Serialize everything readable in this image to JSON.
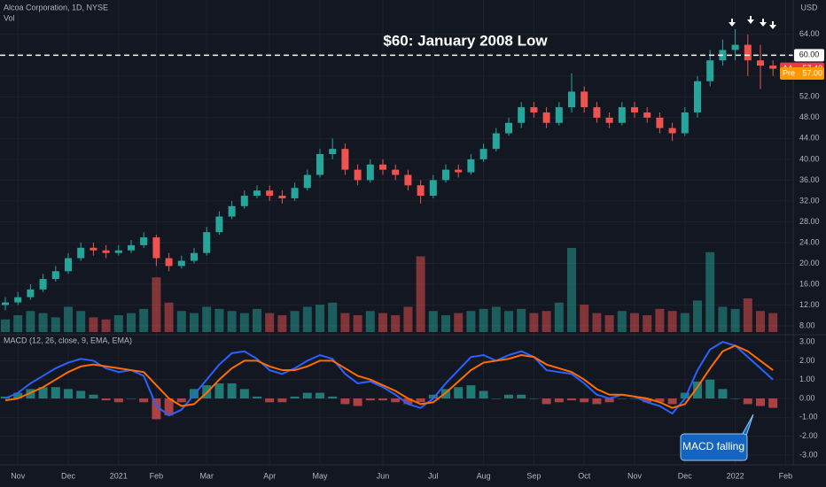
{
  "chart_data": [
    {
      "type": "candlestick",
      "title": "Alcoa Corporation, 1D, NYSE",
      "volume_label": "Vol",
      "currency": "USD",
      "categories": [
        null,
        "Nov",
        null,
        null,
        null,
        "Dec",
        null,
        null,
        null,
        "2021",
        null,
        null,
        "Feb",
        null,
        null,
        null,
        "Mar",
        null,
        null,
        null,
        null,
        "Apr",
        null,
        null,
        null,
        "May",
        null,
        null,
        null,
        null,
        "Jun",
        null,
        null,
        null,
        "Jul",
        null,
        null,
        null,
        "Aug",
        null,
        null,
        null,
        "Sep",
        null,
        null,
        null,
        "Oct",
        null,
        null,
        null,
        "Nov",
        null,
        null,
        null,
        "Dec",
        null,
        null,
        null,
        "2022",
        null,
        null,
        null,
        "Feb"
      ],
      "open": [
        12,
        12.5,
        13.5,
        15,
        17,
        18.5,
        21,
        23,
        22.5,
        22,
        22.5,
        23.5,
        25,
        21,
        19.5,
        20.5,
        22,
        26,
        29,
        31,
        33,
        34,
        33,
        32.5,
        34.5,
        37,
        41,
        42,
        38,
        36,
        39,
        38,
        37,
        35,
        33,
        36,
        38,
        37.5,
        40,
        42,
        45,
        47,
        50,
        49,
        47,
        50,
        53,
        50,
        48,
        47,
        50,
        49,
        48,
        46,
        45,
        49,
        55,
        59,
        61,
        62,
        59,
        58,
        null
      ],
      "high": [
        13.5,
        14.5,
        16,
        18,
        19.5,
        22,
        24,
        24,
        23.5,
        23.5,
        24.5,
        26,
        25.5,
        22,
        21.5,
        23,
        27,
        30,
        32,
        34,
        35,
        35,
        34,
        35.5,
        38,
        42,
        44,
        43,
        39,
        40,
        40,
        39,
        38,
        36,
        37,
        39,
        39,
        41,
        43,
        46,
        48,
        51,
        51,
        50,
        51,
        56.5,
        54,
        51,
        49,
        51,
        51,
        50,
        49,
        47,
        50,
        56,
        61,
        63,
        65,
        64,
        62,
        59,
        null
      ],
      "low": [
        11,
        12,
        13,
        14.5,
        16.5,
        18,
        20.5,
        21.5,
        21,
        21.5,
        22,
        23,
        19.5,
        18.5,
        19,
        20,
        21.5,
        25.5,
        28.5,
        30.5,
        32.5,
        32,
        31.5,
        32,
        34,
        36.5,
        40,
        37,
        35,
        35.5,
        37,
        36,
        34,
        31.5,
        32.5,
        35.5,
        36.5,
        37,
        39.5,
        41.5,
        44.5,
        46,
        48,
        46,
        46.5,
        49,
        49,
        47,
        46,
        46.5,
        48,
        47,
        45,
        43.5,
        44.5,
        48,
        54,
        58,
        59,
        56,
        53.5,
        56,
        null
      ],
      "close": [
        12.5,
        13.5,
        15,
        17,
        18.5,
        21,
        23,
        22.5,
        22,
        22.5,
        23.5,
        25,
        21,
        19.5,
        20.5,
        22,
        26,
        29,
        31,
        33,
        34,
        33,
        32.5,
        34.5,
        37,
        41,
        42,
        38,
        36,
        39,
        38,
        37,
        35,
        33,
        36,
        38,
        37.5,
        40,
        42,
        45,
        47,
        50,
        49,
        47,
        50,
        53,
        50,
        48,
        47,
        50,
        49,
        48,
        46,
        45,
        49,
        55,
        59,
        61,
        62,
        59,
        58,
        57.4,
        null
      ],
      "volume": [
        6,
        8,
        10,
        9,
        7,
        12,
        10,
        7,
        6,
        8,
        9,
        11,
        26,
        14,
        10,
        9,
        12,
        11,
        10,
        9,
        11,
        9,
        8,
        10,
        12,
        13,
        14,
        9,
        8,
        10,
        9,
        8,
        12,
        36,
        10,
        8,
        9,
        10,
        11,
        12,
        10,
        11,
        9,
        10,
        14,
        40,
        13,
        9,
        8,
        10,
        9,
        8,
        11,
        10,
        9,
        15,
        38,
        12,
        11,
        16,
        10,
        9,
        null
      ],
      "up_color": "#26a69a",
      "down_color": "#ef5350",
      "ylim": [
        6.3,
        70.6
      ],
      "yticks": [
        {
          "value": 8,
          "label": "8.00"
        },
        {
          "value": 12,
          "label": "12.00"
        },
        {
          "value": 16,
          "label": "16.00"
        },
        {
          "value": 20,
          "label": "20.00"
        },
        {
          "value": 24,
          "label": "24.00"
        },
        {
          "value": 28,
          "label": "28.00"
        },
        {
          "value": 32,
          "label": "32.00"
        },
        {
          "value": 36,
          "label": "36.00"
        },
        {
          "value": 40,
          "label": "40.00"
        },
        {
          "value": 44,
          "label": "44.00"
        },
        {
          "value": 48,
          "label": "48.00"
        },
        {
          "value": 52,
          "label": "52.00"
        },
        {
          "value": 56,
          "label": "56.00"
        },
        {
          "value": 60,
          "label": "60.00"
        },
        {
          "value": 64,
          "label": "64.00"
        }
      ],
      "level": {
        "value": 60,
        "label": "60.00"
      },
      "level_note": "$60: January 2008 Low",
      "last_price": {
        "symbol": "AA",
        "value": 57.4,
        "label": "57.40"
      },
      "premarket": {
        "symbol": "Pre",
        "value": 57,
        "label": "57.00"
      },
      "grid": true
    },
    {
      "type": "macd",
      "title": "MACD (12, 26, close, 9, EMA, EMA)",
      "series": [
        {
          "color": "#2962ff",
          "values": [
            0.0,
            0.3,
            0.8,
            1.2,
            1.6,
            1.9,
            2.1,
            2.0,
            1.6,
            1.4,
            1.5,
            1.2,
            -0.4,
            -0.9,
            -0.6,
            0.2,
            1.0,
            1.8,
            2.4,
            2.5,
            2.1,
            1.5,
            1.3,
            1.6,
            2.0,
            2.3,
            2.1,
            1.3,
            0.8,
            0.9,
            0.6,
            0.2,
            -0.3,
            -0.5,
            0.0,
            0.8,
            1.5,
            2.2,
            2.3,
            2.0,
            2.3,
            2.5,
            2.2,
            1.5,
            1.4,
            1.3,
            0.8,
            0.2,
            0.0,
            0.2,
            0.1,
            -0.2,
            -0.4,
            -0.8,
            0.0,
            1.5,
            2.6,
            3.0,
            2.8,
            2.2,
            1.6,
            1.0,
            null
          ]
        },
        {
          "color": "#ff6d00",
          "values": [
            -0.1,
            0.0,
            0.3,
            0.6,
            1.0,
            1.4,
            1.7,
            1.8,
            1.7,
            1.6,
            1.5,
            1.4,
            0.7,
            0.0,
            -0.4,
            -0.3,
            0.3,
            1.0,
            1.6,
            2.0,
            2.0,
            1.7,
            1.5,
            1.5,
            1.7,
            2.0,
            2.0,
            1.6,
            1.2,
            1.0,
            0.7,
            0.4,
            0.0,
            -0.3,
            -0.2,
            0.3,
            0.9,
            1.5,
            1.9,
            2.0,
            2.1,
            2.3,
            2.2,
            1.8,
            1.6,
            1.4,
            1.0,
            0.5,
            0.2,
            0.2,
            0.1,
            0.0,
            -0.2,
            -0.5,
            -0.3,
            0.6,
            1.6,
            2.5,
            2.8,
            2.5,
            2.0,
            1.5,
            null
          ]
        }
      ],
      "histogram": {
        "up_color": "#26a69a",
        "down_color": "#ef5350",
        "values": [
          0.1,
          0.3,
          0.5,
          0.6,
          0.6,
          0.5,
          0.4,
          0.2,
          -0.1,
          -0.2,
          0.0,
          -0.2,
          -1.1,
          -0.9,
          -0.2,
          0.5,
          0.7,
          0.8,
          0.8,
          0.5,
          0.1,
          -0.2,
          -0.2,
          0.1,
          0.3,
          0.3,
          0.1,
          -0.3,
          -0.4,
          -0.1,
          -0.1,
          -0.2,
          -0.3,
          -0.2,
          0.2,
          0.5,
          0.6,
          0.7,
          0.4,
          0.0,
          0.2,
          0.2,
          0.0,
          -0.3,
          -0.2,
          -0.1,
          -0.2,
          -0.3,
          -0.2,
          0.0,
          0.0,
          -0.2,
          -0.2,
          -0.3,
          0.3,
          0.9,
          1.0,
          0.5,
          0.0,
          -0.3,
          -0.4,
          -0.5,
          null
        ]
      },
      "ylim": [
        -3.52,
        3.38
      ],
      "yticks": [
        {
          "value": 3,
          "label": "3.00"
        },
        {
          "value": 2,
          "label": "2.00"
        },
        {
          "value": 1,
          "label": "1.00"
        },
        {
          "value": 0,
          "label": "0.00"
        },
        {
          "value": -1,
          "label": "-1.00"
        },
        {
          "value": -2,
          "label": "-2.00"
        },
        {
          "value": -3,
          "label": "-3.00"
        }
      ],
      "annotation": "MACD falling",
      "grid": true
    }
  ]
}
